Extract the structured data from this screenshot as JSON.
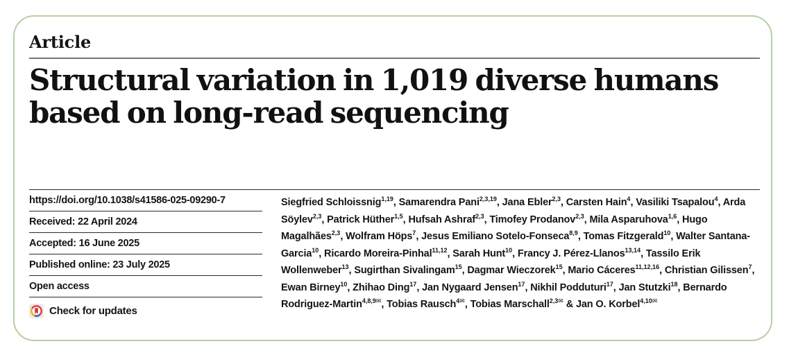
{
  "header": {
    "kicker": "Article"
  },
  "title_lines": [
    "Structural variation in 1,019 diverse humans",
    "based on long-read sequencing"
  ],
  "title_full": "Structural variation in 1,019 diverse humans based on long-read sequencing",
  "meta": {
    "doi": "https://doi.org/10.1038/s41586-025-09290-7",
    "received": "Received: 22 April 2024",
    "accepted": "Accepted: 16 June 2025",
    "published": "Published online: 23 July 2025",
    "open_access": "Open access",
    "check_updates": "Check for updates"
  },
  "icons": {
    "check_for_updates": "crossmark-circle-icon",
    "corresponding_author": "envelope-icon",
    "envelope_glyph": "✉"
  },
  "colors": {
    "card_border_green": "#b7cfa4",
    "text": "#141414",
    "rule_dark": "#2b2b2b",
    "rule_gray": "#757575",
    "crossmark_red": "#e0434c",
    "crossmark_yellow": "#f3b01c",
    "crossmark_blue": "#3f63d2",
    "crossmark_bg": "#eceae6"
  },
  "authors": {
    "separator": ", ",
    "last_separator": " & ",
    "list": [
      {
        "name": "Siegfried Schloissnig",
        "sup": "1,19",
        "corresponding": false
      },
      {
        "name": "Samarendra Pani",
        "sup": "2,3,19",
        "corresponding": false
      },
      {
        "name": "Jana Ebler",
        "sup": "2,3",
        "corresponding": false
      },
      {
        "name": "Carsten Hain",
        "sup": "4",
        "corresponding": false
      },
      {
        "name": "Vasiliki Tsapalou",
        "sup": "4",
        "corresponding": false
      },
      {
        "name": "Arda Söylev",
        "sup": "2,3",
        "corresponding": false
      },
      {
        "name": "Patrick Hüther",
        "sup": "1,5",
        "corresponding": false
      },
      {
        "name": "Hufsah Ashraf",
        "sup": "2,3",
        "corresponding": false
      },
      {
        "name": "Timofey Prodanov",
        "sup": "2,3",
        "corresponding": false
      },
      {
        "name": "Mila Asparuhova",
        "sup": "1,6",
        "corresponding": false
      },
      {
        "name": "Hugo Magalhães",
        "sup": "2,3",
        "corresponding": false
      },
      {
        "name": "Wolfram Höps",
        "sup": "7",
        "corresponding": false
      },
      {
        "name": "Jesus Emiliano Sotelo-Fonseca",
        "sup": "8,9",
        "corresponding": false
      },
      {
        "name": "Tomas Fitzgerald",
        "sup": "10",
        "corresponding": false
      },
      {
        "name": "Walter Santana-Garcia",
        "sup": "10",
        "corresponding": false
      },
      {
        "name": "Ricardo Moreira-Pinhal",
        "sup": "11,12",
        "corresponding": false
      },
      {
        "name": "Sarah Hunt",
        "sup": "10",
        "corresponding": false
      },
      {
        "name": "Francy J. Pérez-Llanos",
        "sup": "13,14",
        "corresponding": false
      },
      {
        "name": "Tassilo Erik Wollenweber",
        "sup": "13",
        "corresponding": false
      },
      {
        "name": "Sugirthan Sivalingam",
        "sup": "15",
        "corresponding": false
      },
      {
        "name": "Dagmar Wieczorek",
        "sup": "15",
        "corresponding": false
      },
      {
        "name": "Mario Cáceres",
        "sup": "11,12,16",
        "corresponding": false
      },
      {
        "name": "Christian Gilissen",
        "sup": "7",
        "corresponding": false
      },
      {
        "name": "Ewan Birney",
        "sup": "10",
        "corresponding": false
      },
      {
        "name": "Zhihao Ding",
        "sup": "17",
        "corresponding": false
      },
      {
        "name": "Jan Nygaard Jensen",
        "sup": "17",
        "corresponding": false
      },
      {
        "name": "Nikhil Podduturi",
        "sup": "17",
        "corresponding": false
      },
      {
        "name": "Jan Stutzki",
        "sup": "18",
        "corresponding": false
      },
      {
        "name": "Bernardo Rodriguez-Martin",
        "sup": "4,8,9",
        "corresponding": true
      },
      {
        "name": "Tobias Rausch",
        "sup": "4",
        "corresponding": true
      },
      {
        "name": "Tobias Marschall",
        "sup": "2,3",
        "corresponding": true
      },
      {
        "name": "Jan O. Korbel",
        "sup": "4,10",
        "corresponding": true
      }
    ]
  }
}
